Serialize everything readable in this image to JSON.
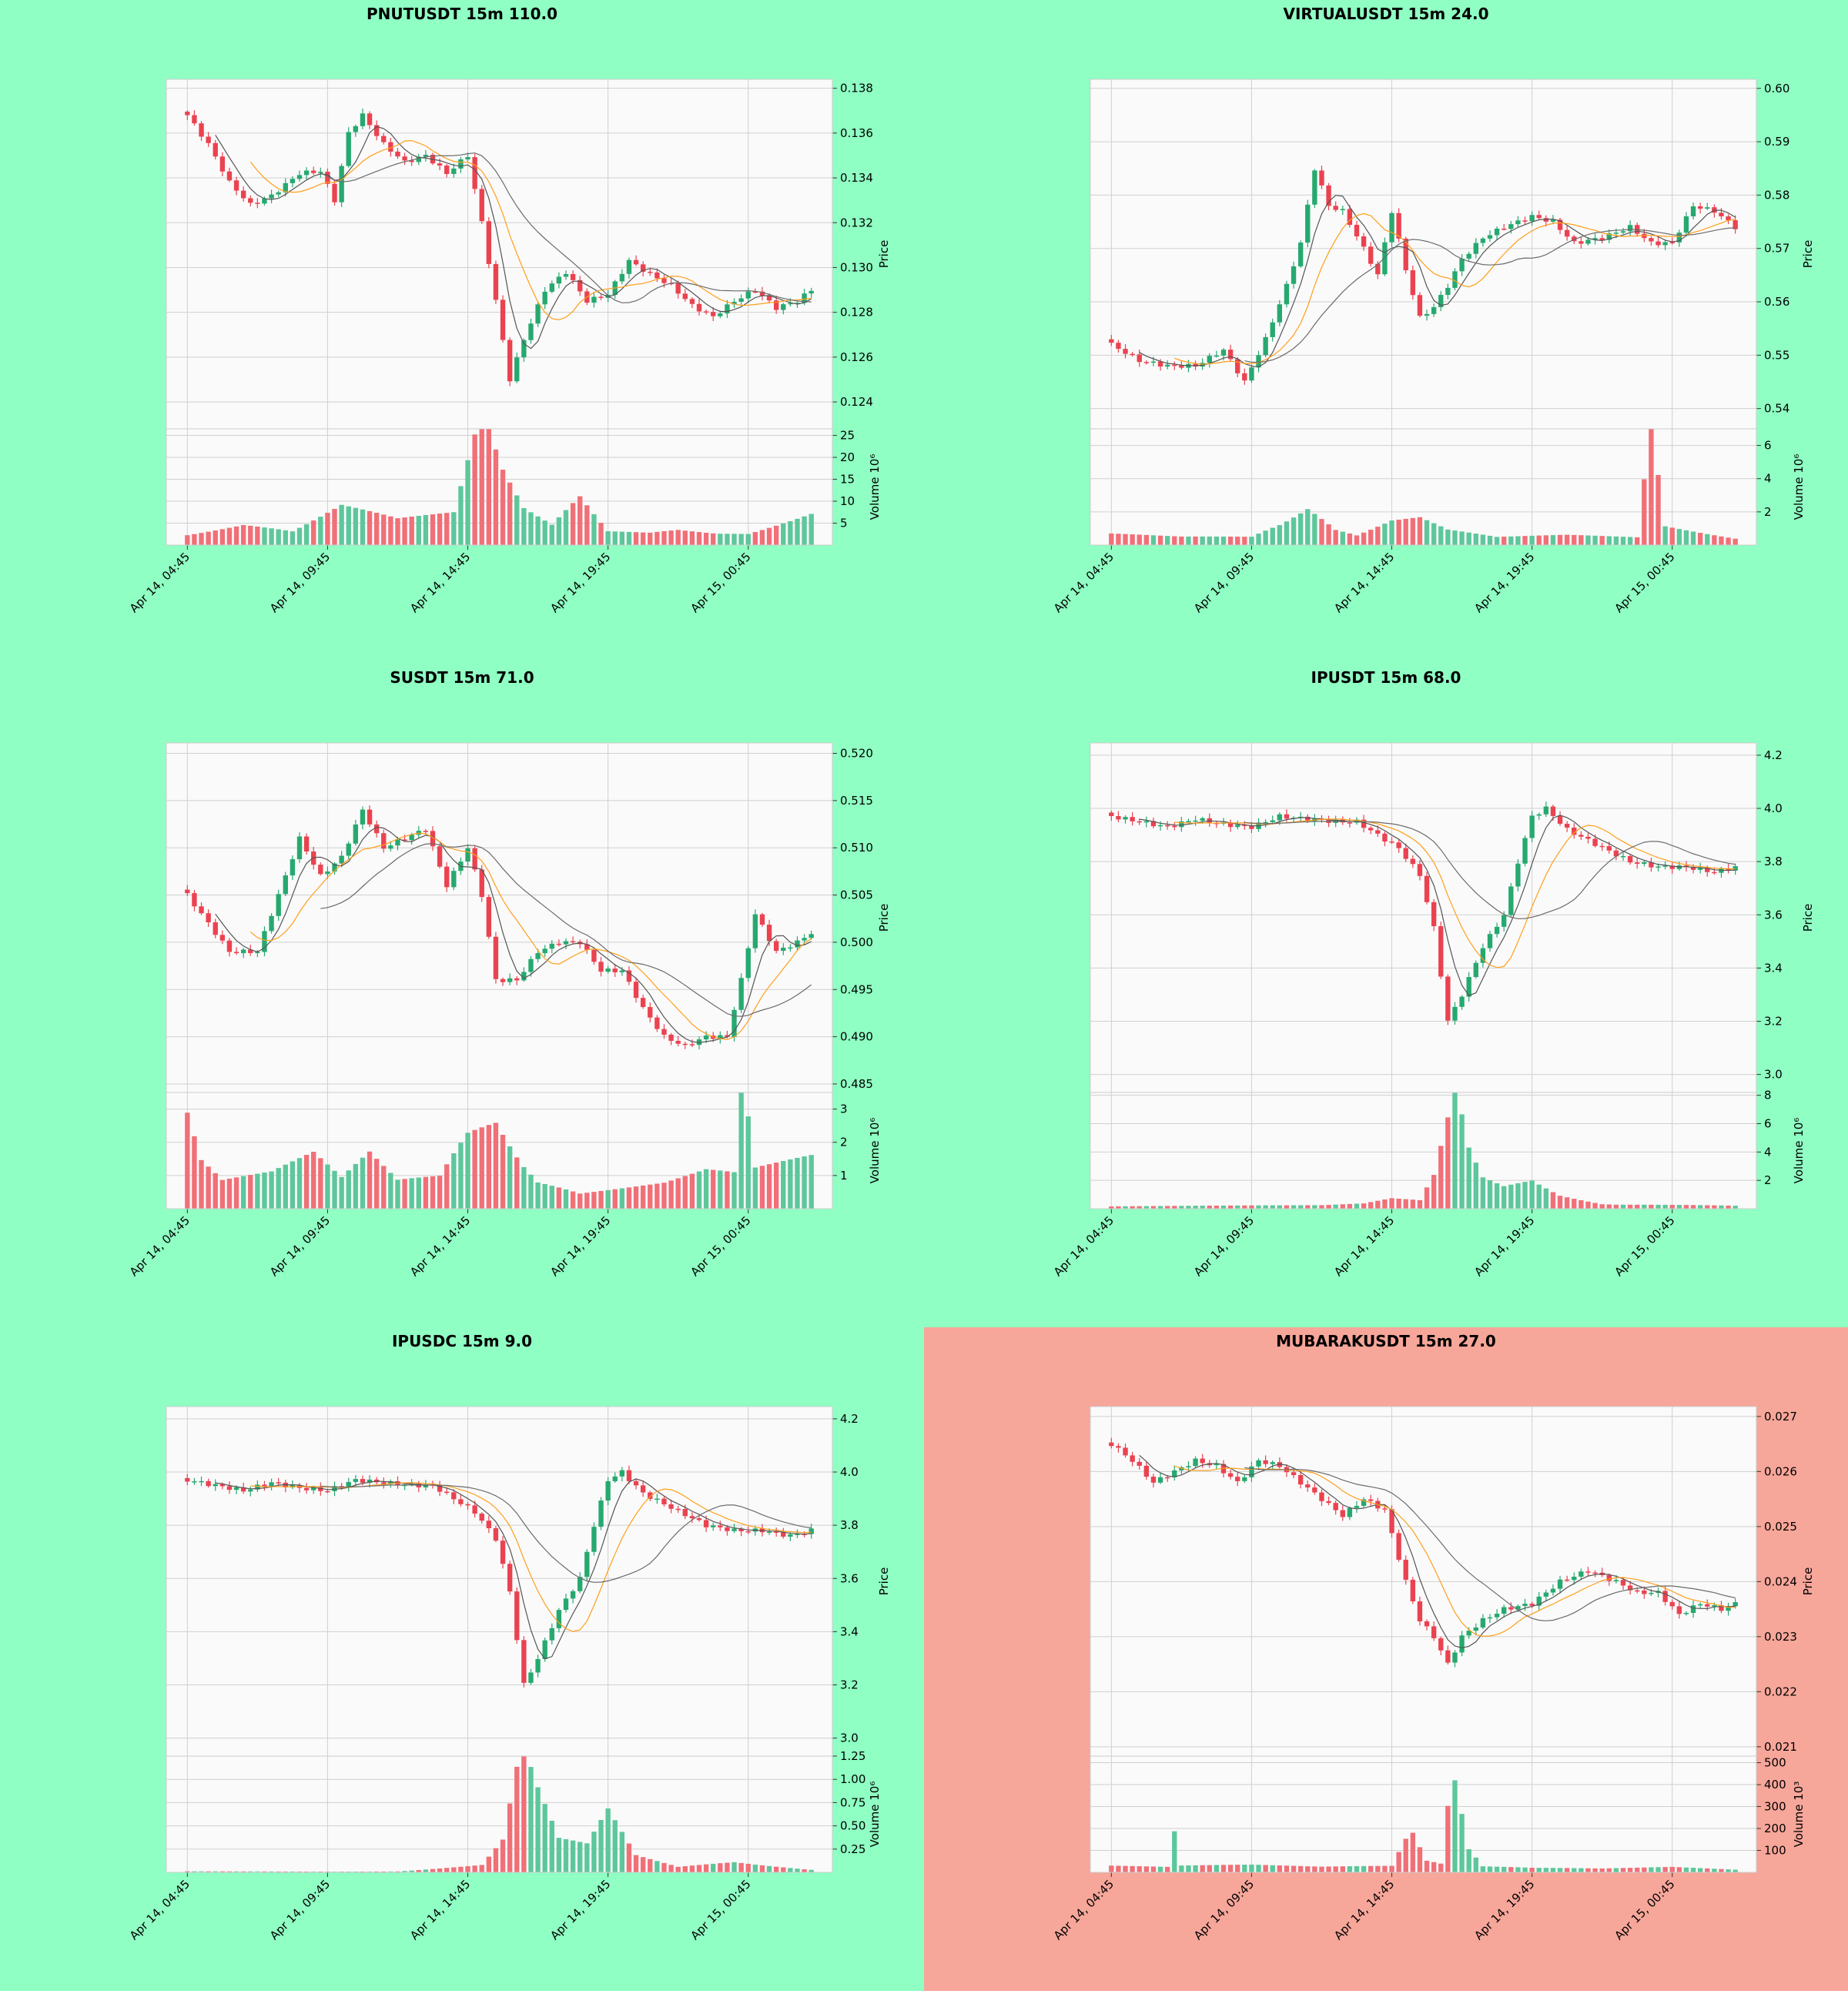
{
  "colors": {
    "page_bg": "#8fffc3",
    "alert_bg": "#f7a69a",
    "plot_bg": "#fafafa",
    "grid": "#d0d0d0",
    "up": "#26a96f",
    "down": "#eb4250",
    "up_volume": "#5dc79b",
    "down_volume": "#f07078",
    "ma_fast": "#555555",
    "ma_mid": "#ff9f1a",
    "ma_slow": "#6b6b6b"
  },
  "chart_data": [
    {
      "type": "candlestick",
      "title": "PNUTUSDT 15m 110.0",
      "alert": false,
      "ylabel": "Price",
      "volume_label": "Volume  10⁶",
      "price_ticks": [
        "0.124",
        "0.126",
        "0.128",
        "0.130",
        "0.132",
        "0.134",
        "0.136",
        "0.138"
      ],
      "price_range": [
        0.1228,
        0.1384
      ],
      "volume_ticks": [
        "5",
        "10",
        "15",
        "20",
        "25"
      ],
      "volume_range": [
        0,
        26.5
      ],
      "x_ticks": [
        "Apr 14, 04:45",
        "Apr 14, 09:45",
        "Apr 14, 14:45",
        "Apr 14, 19:45",
        "Apr 15, 00:45"
      ],
      "x_tick_index": [
        0,
        20,
        40,
        60,
        80
      ],
      "num_bars": 90,
      "anchors": [
        [
          0,
          0.1368
        ],
        [
          3,
          0.1355
        ],
        [
          6,
          0.1338
        ],
        [
          9,
          0.1328
        ],
        [
          12,
          0.1332
        ],
        [
          16,
          0.1342
        ],
        [
          19,
          0.1343
        ],
        [
          21,
          0.133
        ],
        [
          23,
          0.136
        ],
        [
          25,
          0.1368
        ],
        [
          28,
          0.1355
        ],
        [
          31,
          0.1347
        ],
        [
          34,
          0.135
        ],
        [
          37,
          0.1342
        ],
        [
          40,
          0.135
        ],
        [
          42,
          0.132
        ],
        [
          44,
          0.1285
        ],
        [
          46,
          0.125
        ],
        [
          48,
          0.1268
        ],
        [
          51,
          0.129
        ],
        [
          54,
          0.1298
        ],
        [
          57,
          0.1285
        ],
        [
          60,
          0.1288
        ],
        [
          63,
          0.1303
        ],
        [
          66,
          0.1297
        ],
        [
          69,
          0.1292
        ],
        [
          72,
          0.1283
        ],
        [
          75,
          0.1278
        ],
        [
          78,
          0.1285
        ],
        [
          81,
          0.129
        ],
        [
          84,
          0.1282
        ],
        [
          87,
          0.1285
        ],
        [
          89,
          0.129
        ]
      ],
      "volume_anchors": [
        [
          0,
          3
        ],
        [
          8,
          5
        ],
        [
          15,
          3
        ],
        [
          22,
          8
        ],
        [
          30,
          5
        ],
        [
          38,
          6
        ],
        [
          42,
          25
        ],
        [
          45,
          14
        ],
        [
          48,
          7
        ],
        [
          52,
          4
        ],
        [
          56,
          10
        ],
        [
          60,
          3
        ],
        [
          66,
          3
        ],
        [
          70,
          4
        ],
        [
          80,
          3
        ],
        [
          89,
          7
        ]
      ]
    },
    {
      "type": "candlestick",
      "title": "VIRTUALUSDT 15m 24.0",
      "alert": false,
      "ylabel": "Price",
      "volume_label": "Volume  10⁶",
      "price_ticks": [
        "0.54",
        "0.55",
        "0.56",
        "0.57",
        "0.58",
        "0.59",
        "0.60"
      ],
      "price_range": [
        0.5362,
        0.6017
      ],
      "volume_ticks": [
        "2",
        "4",
        "6"
      ],
      "volume_range": [
        0,
        7.0
      ],
      "x_ticks": [
        "Apr 14, 04:45",
        "Apr 14, 09:45",
        "Apr 14, 14:45",
        "Apr 14, 19:45",
        "Apr 15, 00:45"
      ],
      "x_tick_index": [
        0,
        20,
        40,
        60,
        80
      ],
      "num_bars": 90,
      "anchors": [
        [
          0,
          0.552
        ],
        [
          4,
          0.549
        ],
        [
          8,
          0.548
        ],
        [
          12,
          0.548
        ],
        [
          16,
          0.551
        ],
        [
          19,
          0.545
        ],
        [
          22,
          0.553
        ],
        [
          25,
          0.563
        ],
        [
          27,
          0.571
        ],
        [
          29,
          0.585
        ],
        [
          31,
          0.578
        ],
        [
          33,
          0.577
        ],
        [
          36,
          0.57
        ],
        [
          38,
          0.565
        ],
        [
          40,
          0.577
        ],
        [
          42,
          0.566
        ],
        [
          44,
          0.557
        ],
        [
          46,
          0.559
        ],
        [
          48,
          0.563
        ],
        [
          50,
          0.568
        ],
        [
          53,
          0.572
        ],
        [
          56,
          0.574
        ],
        [
          60,
          0.576
        ],
        [
          63,
          0.575
        ],
        [
          66,
          0.571
        ],
        [
          70,
          0.572
        ],
        [
          74,
          0.574
        ],
        [
          77,
          0.571
        ],
        [
          80,
          0.571
        ],
        [
          83,
          0.578
        ],
        [
          86,
          0.577
        ],
        [
          89,
          0.574
        ]
      ],
      "volume_anchors": [
        [
          0,
          0.6
        ],
        [
          10,
          0.5
        ],
        [
          20,
          0.6
        ],
        [
          28,
          2.6
        ],
        [
          32,
          1.0
        ],
        [
          35,
          0.6
        ],
        [
          40,
          1.4
        ],
        [
          44,
          1.5
        ],
        [
          48,
          0.8
        ],
        [
          55,
          0.4
        ],
        [
          65,
          0.5
        ],
        [
          75,
          0.4
        ],
        [
          77,
          6.4
        ],
        [
          79,
          1.0
        ],
        [
          89,
          0.4
        ]
      ]
    },
    {
      "type": "candlestick",
      "title": "SUSDT 15m 71.0",
      "alert": false,
      "ylabel": "Price",
      "volume_label": "Volume  10⁶",
      "price_ticks": [
        "0.485",
        "0.490",
        "0.495",
        "0.500",
        "0.505",
        "0.510",
        "0.515",
        "0.520"
      ],
      "price_range": [
        0.4841,
        0.5211
      ],
      "volume_ticks": [
        "1",
        "2",
        "3"
      ],
      "volume_range": [
        0,
        3.5
      ],
      "x_ticks": [
        "Apr 14, 04:45",
        "Apr 14, 09:45",
        "Apr 14, 14:45",
        "Apr 14, 19:45",
        "Apr 15, 00:45"
      ],
      "x_tick_index": [
        0,
        20,
        40,
        60,
        80
      ],
      "num_bars": 90,
      "anchors": [
        [
          0,
          0.505
        ],
        [
          3,
          0.502
        ],
        [
          6,
          0.499
        ],
        [
          10,
          0.499
        ],
        [
          13,
          0.505
        ],
        [
          16,
          0.511
        ],
        [
          19,
          0.507
        ],
        [
          22,
          0.509
        ],
        [
          25,
          0.514
        ],
        [
          28,
          0.51
        ],
        [
          31,
          0.511
        ],
        [
          34,
          0.512
        ],
        [
          37,
          0.506
        ],
        [
          40,
          0.51
        ],
        [
          42,
          0.505
        ],
        [
          44,
          0.496
        ],
        [
          47,
          0.496
        ],
        [
          50,
          0.499
        ],
        [
          53,
          0.5
        ],
        [
          56,
          0.5
        ],
        [
          59,
          0.497
        ],
        [
          62,
          0.497
        ],
        [
          65,
          0.493
        ],
        [
          68,
          0.49
        ],
        [
          71,
          0.489
        ],
        [
          74,
          0.49
        ],
        [
          77,
          0.49
        ],
        [
          79,
          0.496
        ],
        [
          81,
          0.503
        ],
        [
          84,
          0.499
        ],
        [
          87,
          0.5
        ],
        [
          89,
          0.501
        ]
      ],
      "volume_anchors": [
        [
          0,
          2.4
        ],
        [
          2,
          1.2
        ],
        [
          5,
          0.7
        ],
        [
          12,
          0.9
        ],
        [
          18,
          1.4
        ],
        [
          22,
          0.8
        ],
        [
          26,
          1.5
        ],
        [
          30,
          0.8
        ],
        [
          36,
          1.0
        ],
        [
          40,
          2.5
        ],
        [
          44,
          3.1
        ],
        [
          47,
          2.0
        ],
        [
          50,
          1.0
        ],
        [
          56,
          0.5
        ],
        [
          62,
          0.6
        ],
        [
          68,
          0.7
        ],
        [
          74,
          1.0
        ],
        [
          78,
          0.9
        ],
        [
          79,
          3.5
        ],
        [
          81,
          1.0
        ],
        [
          89,
          1.3
        ]
      ]
    },
    {
      "type": "candlestick",
      "title": "IPUSDT 15m 68.0",
      "alert": false,
      "ylabel": "Price",
      "volume_label": "Volume  10⁶",
      "price_ticks": [
        "3.0",
        "3.2",
        "3.4",
        "3.6",
        "3.8",
        "4.0",
        "4.2"
      ],
      "price_range": [
        2.9323,
        4.246
      ],
      "volume_ticks": [
        "2",
        "4",
        "6",
        "8"
      ],
      "volume_range": [
        0,
        8.2
      ],
      "x_ticks": [
        "Apr 14, 04:45",
        "Apr 14, 09:45",
        "Apr 14, 14:45",
        "Apr 14, 19:45",
        "Apr 15, 00:45"
      ],
      "x_tick_index": [
        0,
        20,
        40,
        60,
        80
      ],
      "num_bars": 90,
      "anchors": [
        [
          0,
          3.97
        ],
        [
          4,
          3.95
        ],
        [
          8,
          3.93
        ],
        [
          12,
          3.96
        ],
        [
          16,
          3.94
        ],
        [
          20,
          3.93
        ],
        [
          24,
          3.97
        ],
        [
          28,
          3.96
        ],
        [
          32,
          3.95
        ],
        [
          35,
          3.95
        ],
        [
          38,
          3.9
        ],
        [
          41,
          3.85
        ],
        [
          44,
          3.75
        ],
        [
          46,
          3.55
        ],
        [
          48,
          3.2
        ],
        [
          50,
          3.3
        ],
        [
          53,
          3.48
        ],
        [
          56,
          3.6
        ],
        [
          58,
          3.8
        ],
        [
          60,
          3.97
        ],
        [
          62,
          4.0
        ],
        [
          65,
          3.92
        ],
        [
          68,
          3.88
        ],
        [
          71,
          3.84
        ],
        [
          74,
          3.8
        ],
        [
          78,
          3.78
        ],
        [
          82,
          3.78
        ],
        [
          86,
          3.76
        ],
        [
          89,
          3.78
        ]
      ],
      "volume_anchors": [
        [
          0,
          0.2
        ],
        [
          30,
          0.2
        ],
        [
          36,
          0.3
        ],
        [
          40,
          0.6
        ],
        [
          44,
          0.5
        ],
        [
          46,
          2.0
        ],
        [
          48,
          5.5
        ],
        [
          49,
          7.8
        ],
        [
          51,
          3.8
        ],
        [
          53,
          2.0
        ],
        [
          56,
          1.5
        ],
        [
          60,
          2.0
        ],
        [
          64,
          1.0
        ],
        [
          70,
          0.4
        ],
        [
          80,
          0.3
        ],
        [
          89,
          0.2
        ]
      ]
    },
    {
      "type": "candlestick",
      "title": "IPUSDC 15m 9.0",
      "alert": false,
      "ylabel": "Price",
      "volume_label": "Volume  10⁶",
      "price_ticks": [
        "3.0",
        "3.2",
        "3.4",
        "3.6",
        "3.8",
        "4.0",
        "4.2"
      ],
      "price_range": [
        2.9323,
        4.246
      ],
      "volume_ticks": [
        "0.25",
        "0.50",
        "0.75",
        "1.00",
        "1.25"
      ],
      "volume_range": [
        0,
        1.25
      ],
      "x_ticks": [
        "Apr 14, 04:45",
        "Apr 14, 09:45",
        "Apr 14, 14:45",
        "Apr 14, 19:45",
        "Apr 15, 00:45"
      ],
      "x_tick_index": [
        0,
        20,
        40,
        60,
        80
      ],
      "num_bars": 90,
      "anchors": [
        [
          0,
          3.97
        ],
        [
          4,
          3.95
        ],
        [
          8,
          3.93
        ],
        [
          12,
          3.96
        ],
        [
          16,
          3.94
        ],
        [
          20,
          3.93
        ],
        [
          24,
          3.97
        ],
        [
          28,
          3.96
        ],
        [
          32,
          3.95
        ],
        [
          35,
          3.95
        ],
        [
          38,
          3.9
        ],
        [
          41,
          3.85
        ],
        [
          44,
          3.75
        ],
        [
          46,
          3.55
        ],
        [
          48,
          3.2
        ],
        [
          50,
          3.3
        ],
        [
          53,
          3.48
        ],
        [
          56,
          3.6
        ],
        [
          58,
          3.8
        ],
        [
          60,
          3.97
        ],
        [
          62,
          4.0
        ],
        [
          65,
          3.92
        ],
        [
          68,
          3.88
        ],
        [
          71,
          3.84
        ],
        [
          74,
          3.8
        ],
        [
          78,
          3.78
        ],
        [
          82,
          3.78
        ],
        [
          86,
          3.76
        ],
        [
          89,
          3.78
        ]
      ],
      "volume_anchors": [
        [
          0,
          0.01
        ],
        [
          30,
          0.01
        ],
        [
          36,
          0.04
        ],
        [
          42,
          0.07
        ],
        [
          45,
          0.3
        ],
        [
          47,
          0.95
        ],
        [
          48,
          1.12
        ],
        [
          50,
          0.75
        ],
        [
          53,
          0.3
        ],
        [
          57,
          0.25
        ],
        [
          60,
          0.55
        ],
        [
          64,
          0.15
        ],
        [
          70,
          0.05
        ],
        [
          78,
          0.1
        ],
        [
          81,
          0.08
        ],
        [
          89,
          0.03
        ]
      ]
    },
    {
      "type": "candlestick",
      "title": "MUBARAKUSDT 15m 27.0",
      "alert": true,
      "ylabel": "Price",
      "volume_label": "Volume  10³",
      "price_ticks": [
        "0.021",
        "0.022",
        "0.023",
        "0.024",
        "0.025",
        "0.026",
        "0.027"
      ],
      "price_range": [
        0.02083,
        0.02718
      ],
      "volume_ticks": [
        "100",
        "200",
        "300",
        "400",
        "500"
      ],
      "volume_range": [
        0,
        530
      ],
      "x_ticks": [
        "Apr 14, 04:45",
        "Apr 14, 09:45",
        "Apr 14, 14:45",
        "Apr 14, 19:45",
        "Apr 15, 00:45"
      ],
      "x_tick_index": [
        0,
        20,
        40,
        60,
        80
      ],
      "num_bars": 90,
      "anchors": [
        [
          0,
          0.0265
        ],
        [
          3,
          0.0262
        ],
        [
          6,
          0.0258
        ],
        [
          9,
          0.026
        ],
        [
          12,
          0.0262
        ],
        [
          15,
          0.0261
        ],
        [
          18,
          0.0258
        ],
        [
          21,
          0.0262
        ],
        [
          24,
          0.0261
        ],
        [
          27,
          0.0258
        ],
        [
          30,
          0.0255
        ],
        [
          33,
          0.0252
        ],
        [
          36,
          0.0255
        ],
        [
          39,
          0.0253
        ],
        [
          42,
          0.024
        ],
        [
          44,
          0.0233
        ],
        [
          46,
          0.023
        ],
        [
          48,
          0.0225
        ],
        [
          50,
          0.023
        ],
        [
          53,
          0.0233
        ],
        [
          56,
          0.0235
        ],
        [
          60,
          0.0236
        ],
        [
          64,
          0.024
        ],
        [
          68,
          0.0242
        ],
        [
          72,
          0.024
        ],
        [
          75,
          0.0238
        ],
        [
          78,
          0.0238
        ],
        [
          81,
          0.0234
        ],
        [
          84,
          0.0236
        ],
        [
          87,
          0.0235
        ],
        [
          89,
          0.0236
        ]
      ],
      "volume_anchors": [
        [
          0,
          25
        ],
        [
          8,
          20
        ],
        [
          9,
          150
        ],
        [
          10,
          25
        ],
        [
          20,
          30
        ],
        [
          30,
          25
        ],
        [
          40,
          35
        ],
        [
          42,
          190
        ],
        [
          43,
          230
        ],
        [
          45,
          70
        ],
        [
          47,
          50
        ],
        [
          48,
          370
        ],
        [
          49,
          500
        ],
        [
          51,
          120
        ],
        [
          53,
          30
        ],
        [
          60,
          20
        ],
        [
          70,
          15
        ],
        [
          80,
          20
        ],
        [
          89,
          10
        ]
      ]
    }
  ]
}
